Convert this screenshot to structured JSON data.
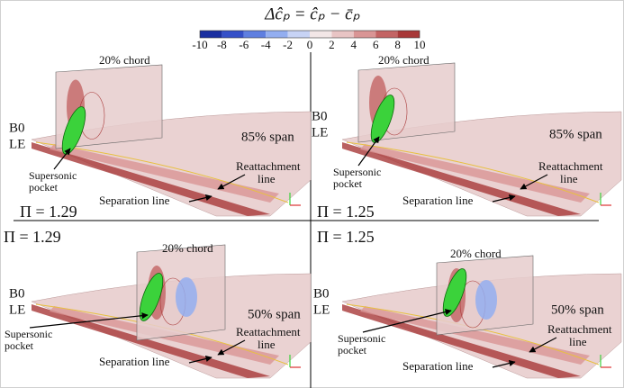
{
  "colorbar": {
    "title": "Δĉₚ = ĉₚ − c̄ₚ",
    "ticks": [
      -10,
      -8,
      -6,
      -4,
      -2,
      0,
      2,
      4,
      6,
      8,
      10
    ],
    "colors": [
      "#1a2fa0",
      "#3550c8",
      "#5f7fe0",
      "#93aef0",
      "#c7d3f5",
      "#f2e6e6",
      "#e8c4c4",
      "#d99595",
      "#c36464",
      "#a83838"
    ]
  },
  "panels": [
    {
      "chord": "20% chord",
      "b0": "B0",
      "le": "LE",
      "span": "85% span",
      "pocket": [
        "Supersonic",
        "pocket"
      ],
      "reattachment": [
        "Reattachment",
        "line"
      ],
      "separation": "Separation line",
      "pi": "Π  = 1.29"
    },
    {
      "chord": "20% chord",
      "b0": "B0",
      "le": "LE",
      "span": "85% span",
      "pocket": [
        "Supersonic",
        "pocket"
      ],
      "reattachment": [
        "Reattachment",
        "line"
      ],
      "separation": "Separation line",
      "pi": "Π  = 1.25"
    },
    {
      "chord": "20% chord",
      "b0": "B0",
      "le": "LE",
      "span": "50% span",
      "pocket": [
        "Supersonic",
        "pocket"
      ],
      "reattachment": [
        "Reattachment",
        "line"
      ],
      "separation": "Separation line",
      "pi": "Π  = 1.29"
    },
    {
      "chord": "20% chord",
      "b0": "B0",
      "le": "LE",
      "span": "50% span",
      "pocket": [
        "Supersonic",
        "pocket"
      ],
      "reattachment": [
        "Reattachment",
        "line"
      ],
      "separation": "Separation line",
      "pi": "Π  = 1.25"
    }
  ]
}
